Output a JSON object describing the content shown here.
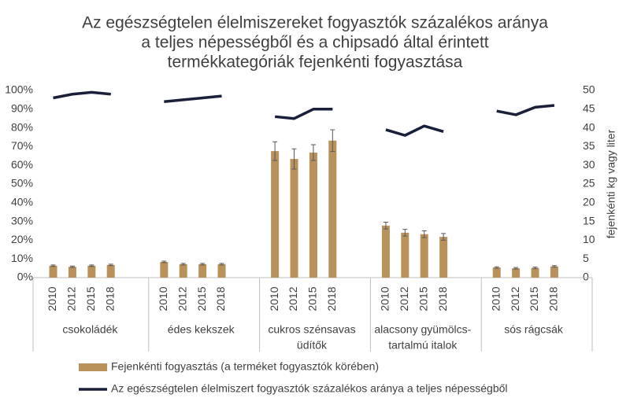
{
  "chart_data": {
    "type": "bar-line",
    "title": [
      "Az egészségtelen élelmiszereket fogyasztók százalékos aránya",
      "a teljes népességből és a chipsadó által érintett",
      "termékkategóriák fejenkénti fogyasztása"
    ],
    "y2label": "fejenkénti kg vagy liter",
    "groups": [
      [
        "csokoládék"
      ],
      [
        "édes kekszek"
      ],
      [
        "cukros szénsavas",
        "üdítők"
      ],
      [
        "alacsony gyümölcs-",
        "tartalmú italok"
      ],
      [
        "sós rágcsák"
      ]
    ],
    "categories": [
      "2010",
      "2012",
      "2015",
      "2018",
      "2010",
      "2012",
      "2015",
      "2018",
      "2010",
      "2012",
      "2015",
      "2018",
      "2010",
      "2012",
      "2015",
      "2018",
      "2010",
      "2012",
      "2015",
      "2018"
    ],
    "series": [
      {
        "name": "Fejenkénti fogyasztás (a terméket fogyasztók körében)",
        "kind": "bar",
        "axis": "y2",
        "color": "#b8925a",
        "values": [
          3.2,
          2.9,
          3.2,
          3.4,
          4.2,
          3.6,
          3.6,
          3.6,
          33.8,
          31.7,
          33.4,
          36.6,
          13.9,
          12.0,
          11.6,
          10.9,
          2.7,
          2.5,
          2.6,
          3.0
        ],
        "errors": [
          0.2,
          0.2,
          0.2,
          0.2,
          0.2,
          0.2,
          0.2,
          0.2,
          2.5,
          2.7,
          2.1,
          2.9,
          0.9,
          0.9,
          0.9,
          0.9,
          0.2,
          0.2,
          0.2,
          0.2
        ]
      },
      {
        "name": "Az egészségtelen élelmiszert fogyasztók százalékos aránya a teljes népességből",
        "kind": "line",
        "axis": "y",
        "color": "#1a1f3a",
        "values": [
          96,
          98,
          99,
          98,
          94,
          95,
          96,
          97,
          86,
          85,
          90,
          90,
          79,
          76,
          81,
          78,
          89,
          87,
          91,
          92
        ]
      }
    ],
    "ylim": [
      0,
      100
    ],
    "yticks": [
      {
        "value": 0,
        "label": "0%"
      },
      {
        "value": 10,
        "label": "10%"
      },
      {
        "value": 20,
        "label": "20%"
      },
      {
        "value": 30,
        "label": "30%"
      },
      {
        "value": 40,
        "label": "40%"
      },
      {
        "value": 50,
        "label": "50%"
      },
      {
        "value": 60,
        "label": "60%"
      },
      {
        "value": 70,
        "label": "70%"
      },
      {
        "value": 80,
        "label": "80%"
      },
      {
        "value": 90,
        "label": "90%"
      },
      {
        "value": 100,
        "label": "100%"
      }
    ],
    "y2lim": [
      0,
      50
    ],
    "y2ticks": [
      0,
      5,
      10,
      15,
      20,
      25,
      30,
      35,
      40,
      45,
      50
    ]
  }
}
